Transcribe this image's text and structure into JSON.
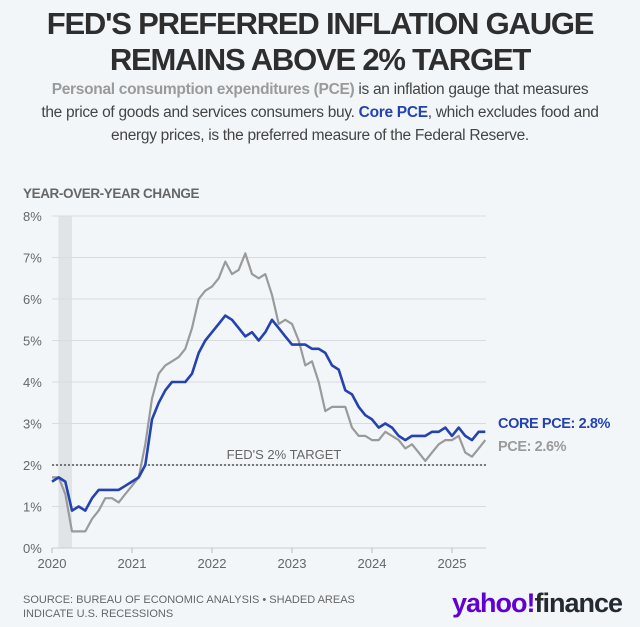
{
  "header": {
    "title_line1": "FED'S PREFERRED INFLATION GAUGE",
    "title_line2": "REMAINS ABOVE 2% TARGET",
    "subtitle_pce_term": "Personal consumption expenditures (PCE)",
    "subtitle_text1": " is an inflation gauge that measures the price of goods and services consumers buy. ",
    "subtitle_core_term": "Core PCE",
    "subtitle_text2": ", which excludes food and energy prices, is the preferred measure of the Federal Reserve."
  },
  "colors": {
    "core_pce": "#2443b0",
    "pce": "#9a9a9a",
    "recession": "#e1e4e6",
    "grid": "#d9dcdf"
  },
  "chart_data": {
    "type": "line",
    "title": "FED'S PREFERRED INFLATION GAUGE REMAINS ABOVE 2% TARGET",
    "ylabel": "YEAR-OVER-YEAR CHANGE",
    "xlabel": "",
    "ylim": [
      0,
      8
    ],
    "yticks": [
      "0%",
      "1%",
      "2%",
      "3%",
      "4%",
      "5%",
      "6%",
      "7%",
      "8%"
    ],
    "xticks": [
      "2020",
      "2021",
      "2022",
      "2023",
      "2024",
      "2025"
    ],
    "x_start": "2020-01",
    "frequency": "monthly",
    "grid": true,
    "reference_line": {
      "value": 2,
      "label": "FED'S 2% TARGET"
    },
    "recession_shading": [
      [
        2020.08,
        2020.25
      ]
    ],
    "series": [
      {
        "name": "CORE PCE",
        "end_label": "CORE PCE: 2.8%",
        "values": [
          1.6,
          1.7,
          1.6,
          0.9,
          1.0,
          0.9,
          1.2,
          1.4,
          1.4,
          1.4,
          1.4,
          1.5,
          1.6,
          1.7,
          2.0,
          3.1,
          3.5,
          3.8,
          4.0,
          4.0,
          4.0,
          4.2,
          4.7,
          5.0,
          5.2,
          5.4,
          5.6,
          5.5,
          5.3,
          5.1,
          5.2,
          5.0,
          5.2,
          5.5,
          5.3,
          5.1,
          4.9,
          4.9,
          4.9,
          4.8,
          4.8,
          4.7,
          4.4,
          4.3,
          3.8,
          3.7,
          3.4,
          3.2,
          3.1,
          2.9,
          3.0,
          2.9,
          2.7,
          2.6,
          2.7,
          2.7,
          2.7,
          2.8,
          2.8,
          2.9,
          2.7,
          2.9,
          2.7,
          2.6,
          2.8,
          2.8
        ]
      },
      {
        "name": "PCE",
        "end_label": "PCE: 2.6%",
        "values": [
          1.7,
          1.7,
          1.3,
          0.4,
          0.4,
          0.4,
          0.7,
          0.9,
          1.2,
          1.2,
          1.1,
          1.3,
          1.5,
          1.7,
          2.5,
          3.6,
          4.2,
          4.4,
          4.5,
          4.6,
          4.8,
          5.3,
          6.0,
          6.2,
          6.3,
          6.5,
          6.9,
          6.6,
          6.7,
          7.1,
          6.6,
          6.5,
          6.6,
          6.1,
          5.4,
          5.5,
          5.4,
          5.0,
          4.4,
          4.5,
          4.0,
          3.3,
          3.4,
          3.4,
          3.4,
          2.9,
          2.7,
          2.7,
          2.6,
          2.6,
          2.8,
          2.7,
          2.6,
          2.4,
          2.5,
          2.3,
          2.1,
          2.3,
          2.5,
          2.6,
          2.6,
          2.7,
          2.3,
          2.2,
          2.4,
          2.6
        ]
      }
    ]
  },
  "footer": {
    "source": "SOURCE: BUREAU OF ECONOMIC ANALYSIS • SHADED AREAS INDICATE U.S. RECESSIONS",
    "logo_yahoo": "yahoo!",
    "logo_finance": "finance"
  }
}
